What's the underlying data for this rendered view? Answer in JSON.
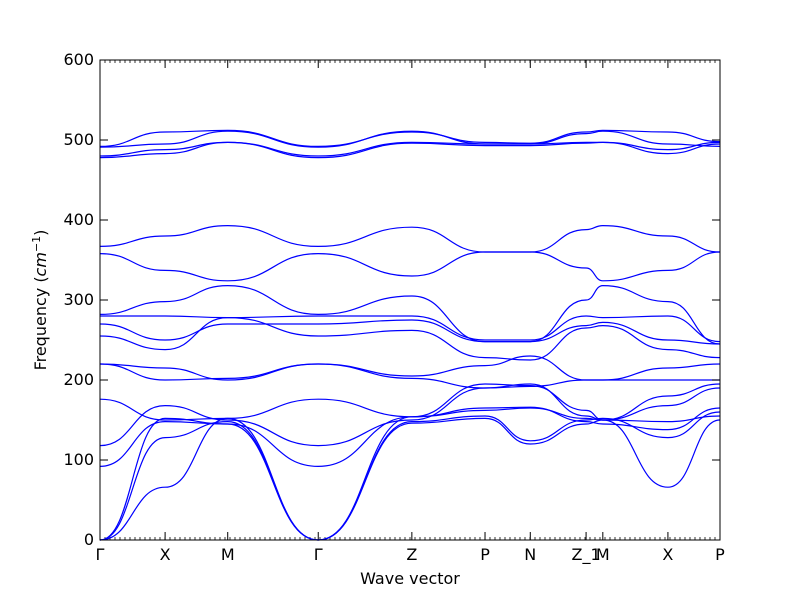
{
  "chart_data": {
    "type": "line",
    "xlabel": "Wave vector",
    "ylabel": "Frequency ($cm^{-1}$)",
    "ylabel_parts": {
      "prefix": "Frequency (",
      "base": "cm",
      "sup": "−1",
      "suffix": ")"
    },
    "ylim": [
      0,
      600
    ],
    "yticks": [
      0,
      100,
      200,
      300,
      400,
      500,
      600
    ],
    "xlim": [
      0,
      1
    ],
    "high_symmetry_points": [
      {
        "label": "Γ",
        "x": 0.0
      },
      {
        "label": "X",
        "x": 0.105
      },
      {
        "label": "M",
        "x": 0.206
      },
      {
        "label": "Γ",
        "x": 0.352
      },
      {
        "label": "Z",
        "x": 0.503
      },
      {
        "label": "P",
        "x": 0.621
      },
      {
        "label": "N",
        "x": 0.694
      },
      {
        "label": "Z_1",
        "x": 0.784
      },
      {
        "label": "M",
        "x": 0.811
      },
      {
        "label": "X",
        "x": 0.916
      },
      {
        "label": "P",
        "x": 1.0
      }
    ],
    "series_color": "#0000ff",
    "series": [
      {
        "values": [
          0,
          66,
          152,
          0,
          146,
          152,
          120,
          145,
          150,
          66,
          150
        ]
      },
      {
        "values": [
          0,
          128,
          148,
          0,
          148,
          155,
          124,
          150,
          152,
          128,
          160
        ]
      },
      {
        "values": [
          0,
          152,
          145,
          0,
          154,
          165,
          166,
          148,
          145,
          138,
          165
        ]
      },
      {
        "values": [
          92,
          148,
          145,
          92,
          154,
          162,
          165,
          152,
          150,
          148,
          155
        ]
      },
      {
        "values": [
          118,
          168,
          150,
          118,
          150,
          190,
          195,
          155,
          150,
          168,
          190
        ]
      },
      {
        "values": [
          176,
          150,
          152,
          176,
          154,
          195,
          193,
          162,
          150,
          180,
          195
        ]
      },
      {
        "values": [
          220,
          200,
          202,
          220,
          202,
          190,
          192,
          200,
          200,
          200,
          200
        ]
      },
      {
        "values": [
          220,
          215,
          200,
          220,
          205,
          218,
          230,
          200,
          200,
          215,
          220
        ]
      },
      {
        "values": [
          255,
          238,
          278,
          255,
          262,
          228,
          225,
          265,
          268,
          238,
          228
        ]
      },
      {
        "values": [
          270,
          250,
          270,
          270,
          275,
          248,
          248,
          268,
          272,
          250,
          245
        ]
      },
      {
        "values": [
          280,
          280,
          278,
          280,
          280,
          250,
          250,
          280,
          278,
          280,
          248
        ]
      },
      {
        "values": [
          282,
          298,
          318,
          282,
          305,
          248,
          248,
          300,
          318,
          298,
          245
        ]
      },
      {
        "values": [
          358,
          337,
          324,
          358,
          330,
          360,
          360,
          340,
          324,
          337,
          360
        ]
      },
      {
        "values": [
          367,
          380,
          393,
          367,
          391,
          360,
          360,
          388,
          393,
          380,
          360
        ]
      },
      {
        "values": [
          478,
          483,
          497,
          478,
          496,
          493,
          493,
          496,
          497,
          483,
          495
        ]
      },
      {
        "values": [
          480,
          488,
          497,
          480,
          497,
          495,
          495,
          497,
          497,
          488,
          497
        ]
      },
      {
        "values": [
          491,
          495,
          511,
          491,
          511,
          495,
          495,
          508,
          511,
          495,
          492
        ]
      },
      {
        "values": [
          492,
          510,
          512,
          492,
          510,
          497,
          496,
          510,
          512,
          510,
          498
        ]
      }
    ]
  }
}
